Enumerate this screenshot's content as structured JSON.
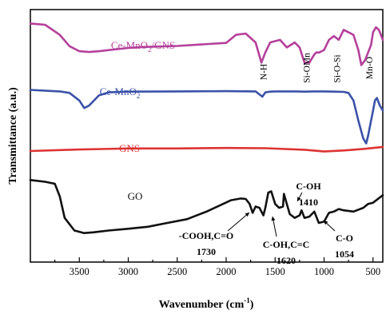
{
  "chart_data": {
    "type": "line",
    "title": "",
    "xlabel_main": "Wavenumber (cm",
    "xlabel_sup": "-1",
    "xlabel_end": ")",
    "ylabel": "Transmittance (a.u.)",
    "xlim": [
      4000,
      400
    ],
    "x_reversed": true,
    "y_ticks_shown": false,
    "grid": false,
    "x_ticks": [
      3500,
      3000,
      2500,
      2000,
      1500,
      1000,
      500
    ],
    "series": [
      {
        "name": "Ce-MnO2/GNS",
        "label_parts": [
          "Ce-MnO",
          "2",
          "/GNS"
        ],
        "color": "#b5409b",
        "x": [
          4000,
          3850,
          3700,
          3600,
          3500,
          3400,
          3300,
          3000,
          2850,
          2500,
          2000,
          1900,
          1800,
          1700,
          1640,
          1600,
          1550,
          1450,
          1380,
          1300,
          1250,
          1200,
          1150,
          1100,
          1080,
          1050,
          1000,
          950,
          900,
          850,
          800,
          700,
          650,
          620,
          580,
          550,
          520,
          500,
          470,
          440,
          420,
          400
        ],
        "y": [
          0.945,
          0.94,
          0.9,
          0.855,
          0.835,
          0.832,
          0.835,
          0.848,
          0.852,
          0.856,
          0.868,
          0.9,
          0.905,
          0.87,
          0.79,
          0.83,
          0.87,
          0.88,
          0.85,
          0.87,
          0.85,
          0.79,
          0.79,
          0.822,
          0.83,
          0.83,
          0.84,
          0.88,
          0.895,
          0.88,
          0.92,
          0.9,
          0.84,
          0.78,
          0.8,
          0.83,
          0.86,
          0.91,
          0.93,
          0.92,
          0.9,
          0.88
        ]
      },
      {
        "name": "Ce-MnO2",
        "label_parts": [
          "Ce-MnO",
          "2",
          ""
        ],
        "color": "#3a52a8",
        "x": [
          4000,
          3800,
          3700,
          3600,
          3500,
          3450,
          3400,
          3300,
          3200,
          3000,
          2500,
          2000,
          1700,
          1630,
          1600,
          1550,
          1500,
          1400,
          1300,
          1200,
          1100,
          1000,
          900,
          800,
          750,
          700,
          650,
          600,
          570,
          550,
          520,
          500,
          480,
          460,
          430,
          400
        ],
        "y": [
          0.682,
          0.678,
          0.676,
          0.67,
          0.64,
          0.61,
          0.62,
          0.66,
          0.672,
          0.675,
          0.676,
          0.677,
          0.676,
          0.655,
          0.672,
          0.675,
          0.676,
          0.676,
          0.676,
          0.675,
          0.676,
          0.676,
          0.675,
          0.674,
          0.67,
          0.64,
          0.56,
          0.49,
          0.47,
          0.5,
          0.56,
          0.6,
          0.64,
          0.65,
          0.62,
          0.6
        ]
      },
      {
        "name": "GNS",
        "label_parts": [
          "GNS",
          "",
          ""
        ],
        "color": "#dd3333",
        "x": [
          4000,
          3500,
          3000,
          2500,
          2000,
          1600,
          1200,
          1000,
          800,
          600,
          500,
          400
        ],
        "y": [
          0.44,
          0.446,
          0.45,
          0.45,
          0.452,
          0.451,
          0.445,
          0.438,
          0.442,
          0.448,
          0.452,
          0.456
        ]
      },
      {
        "name": "GO",
        "label_parts": [
          "GO",
          "",
          ""
        ],
        "color": "#111111",
        "x": [
          4000,
          3850,
          3750,
          3700,
          3650,
          3550,
          3450,
          3350,
          3200,
          3000,
          2800,
          2600,
          2400,
          2200,
          1950,
          1850,
          1800,
          1760,
          1730,
          1700,
          1660,
          1640,
          1620,
          1600,
          1570,
          1540,
          1500,
          1460,
          1420,
          1410,
          1380,
          1350,
          1300,
          1250,
          1230,
          1200,
          1150,
          1100,
          1054,
          1000,
          950,
          900,
          850,
          800,
          700,
          600,
          550,
          500,
          450,
          400
        ],
        "y": [
          0.325,
          0.318,
          0.31,
          0.26,
          0.175,
          0.125,
          0.115,
          0.118,
          0.125,
          0.132,
          0.14,
          0.155,
          0.17,
          0.2,
          0.245,
          0.252,
          0.25,
          0.23,
          0.195,
          0.22,
          0.215,
          0.2,
          0.185,
          0.215,
          0.275,
          0.28,
          0.23,
          0.215,
          0.22,
          0.27,
          0.23,
          0.19,
          0.175,
          0.185,
          0.205,
          0.175,
          0.18,
          0.2,
          0.155,
          0.16,
          0.195,
          0.2,
          0.21,
          0.205,
          0.2,
          0.215,
          0.23,
          0.235,
          0.25,
          0.265
        ]
      }
    ],
    "annotations": {
      "mgns": [
        {
          "text": "N-H",
          "x": 1620
        },
        {
          "text": "Si-OMn",
          "x": 1180
        },
        {
          "text": "Si-O-Si",
          "x": 870
        },
        {
          "text": "Mn-O",
          "x": 540
        }
      ],
      "go": [
        {
          "id": "cooh",
          "line1": "-COOH,C=O",
          "line2": "1730",
          "peak_x": 1730
        },
        {
          "id": "coh_cc",
          "line1": "C-OH,C=C",
          "line2": "1620",
          "peak_x": 1620
        },
        {
          "id": "coh",
          "line1": "C-OH",
          "line2": "1410",
          "peak_x": 1410
        },
        {
          "id": "co",
          "line1": "C-O",
          "line2": "1054",
          "peak_x": 1054
        }
      ]
    }
  }
}
